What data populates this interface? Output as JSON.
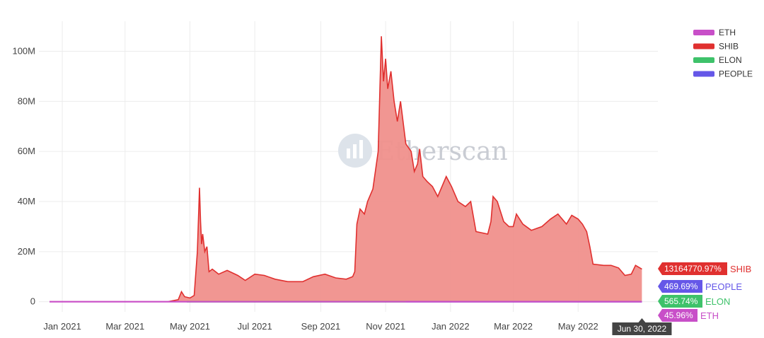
{
  "watermark": "Etherscan",
  "chart_data": {
    "type": "area",
    "title": "",
    "xlabel": "",
    "ylabel": "",
    "x_range": [
      "2020-12-10",
      "2022-07-15"
    ],
    "ylim": [
      -8000000,
      112000000
    ],
    "y_ticks": [
      {
        "value": 0,
        "label": "0"
      },
      {
        "value": 20000000,
        "label": "20M"
      },
      {
        "value": 40000000,
        "label": "40M"
      },
      {
        "value": 60000000,
        "label": "60M"
      },
      {
        "value": 80000000,
        "label": "80M"
      },
      {
        "value": 100000000,
        "label": "100M"
      }
    ],
    "x_ticks": [
      {
        "date": "2021-01-01",
        "label": "Jan 2021"
      },
      {
        "date": "2021-03-01",
        "label": "Mar 2021"
      },
      {
        "date": "2021-05-01",
        "label": "May 2021"
      },
      {
        "date": "2021-07-01",
        "label": "Jul 2021"
      },
      {
        "date": "2021-09-01",
        "label": "Sep 2021"
      },
      {
        "date": "2021-11-01",
        "label": "Nov 2021"
      },
      {
        "date": "2022-01-01",
        "label": "Jan 2022"
      },
      {
        "date": "2022-03-01",
        "label": "Mar 2022"
      },
      {
        "date": "2022-05-01",
        "label": "May 2022"
      }
    ],
    "grid": true,
    "legend_position": "top-right",
    "hover_date_label": "Jun 30, 2022",
    "legend": [
      {
        "name": "ETH",
        "color": "#c84fc8"
      },
      {
        "name": "SHIB",
        "color": "#e0302f"
      },
      {
        "name": "ELON",
        "color": "#3ec26a"
      },
      {
        "name": "PEOPLE",
        "color": "#6557e8"
      }
    ],
    "series": [
      {
        "name": "SHIB",
        "color": "#e0302f",
        "fill": "#f0908c",
        "badge": "13164770.97%",
        "points": [
          [
            "2020-12-20",
            0
          ],
          [
            "2021-04-10",
            0
          ],
          [
            "2021-04-20",
            800000
          ],
          [
            "2021-04-23",
            4000000
          ],
          [
            "2021-04-26",
            2000000
          ],
          [
            "2021-05-01",
            1500000
          ],
          [
            "2021-05-05",
            2500000
          ],
          [
            "2021-05-08",
            20000000
          ],
          [
            "2021-05-10",
            45500000
          ],
          [
            "2021-05-11",
            32000000
          ],
          [
            "2021-05-12",
            23000000
          ],
          [
            "2021-05-13",
            27000000
          ],
          [
            "2021-05-15",
            20000000
          ],
          [
            "2021-05-17",
            22000000
          ],
          [
            "2021-05-19",
            12000000
          ],
          [
            "2021-05-22",
            13000000
          ],
          [
            "2021-05-28",
            11000000
          ],
          [
            "2021-06-05",
            12500000
          ],
          [
            "2021-06-15",
            10500000
          ],
          [
            "2021-06-22",
            8500000
          ],
          [
            "2021-07-01",
            11000000
          ],
          [
            "2021-07-10",
            10500000
          ],
          [
            "2021-07-20",
            9000000
          ],
          [
            "2021-08-01",
            8000000
          ],
          [
            "2021-08-15",
            8000000
          ],
          [
            "2021-08-25",
            10000000
          ],
          [
            "2021-09-05",
            11000000
          ],
          [
            "2021-09-15",
            9500000
          ],
          [
            "2021-09-25",
            9000000
          ],
          [
            "2021-10-01",
            10000000
          ],
          [
            "2021-10-03",
            12000000
          ],
          [
            "2021-10-05",
            31000000
          ],
          [
            "2021-10-08",
            37000000
          ],
          [
            "2021-10-12",
            35000000
          ],
          [
            "2021-10-15",
            40000000
          ],
          [
            "2021-10-20",
            45000000
          ],
          [
            "2021-10-25",
            60000000
          ],
          [
            "2021-10-28",
            106000000
          ],
          [
            "2021-10-30",
            88000000
          ],
          [
            "2021-11-01",
            97000000
          ],
          [
            "2021-11-03",
            85000000
          ],
          [
            "2021-11-06",
            92000000
          ],
          [
            "2021-11-09",
            80000000
          ],
          [
            "2021-11-12",
            72000000
          ],
          [
            "2021-11-15",
            80000000
          ],
          [
            "2021-11-20",
            63000000
          ],
          [
            "2021-11-25",
            60000000
          ],
          [
            "2021-11-28",
            52000000
          ],
          [
            "2021-12-01",
            55000000
          ],
          [
            "2021-12-03",
            61000000
          ],
          [
            "2021-12-06",
            50000000
          ],
          [
            "2021-12-10",
            48000000
          ],
          [
            "2021-12-15",
            46000000
          ],
          [
            "2021-12-20",
            42000000
          ],
          [
            "2021-12-28",
            50000000
          ],
          [
            "2022-01-02",
            46000000
          ],
          [
            "2022-01-08",
            40000000
          ],
          [
            "2022-01-15",
            38000000
          ],
          [
            "2022-01-20",
            40000000
          ],
          [
            "2022-01-25",
            28000000
          ],
          [
            "2022-02-05",
            27000000
          ],
          [
            "2022-02-08",
            32000000
          ],
          [
            "2022-02-10",
            42000000
          ],
          [
            "2022-02-14",
            40000000
          ],
          [
            "2022-02-20",
            32000000
          ],
          [
            "2022-02-25",
            30000000
          ],
          [
            "2022-03-01",
            30000000
          ],
          [
            "2022-03-04",
            35000000
          ],
          [
            "2022-03-10",
            31000000
          ],
          [
            "2022-03-18",
            28500000
          ],
          [
            "2022-03-28",
            30000000
          ],
          [
            "2022-04-05",
            33000000
          ],
          [
            "2022-04-12",
            35000000
          ],
          [
            "2022-04-20",
            31000000
          ],
          [
            "2022-04-25",
            34500000
          ],
          [
            "2022-05-01",
            33000000
          ],
          [
            "2022-05-05",
            31000000
          ],
          [
            "2022-05-09",
            28000000
          ],
          [
            "2022-05-12",
            22000000
          ],
          [
            "2022-05-15",
            15000000
          ],
          [
            "2022-05-25",
            14500000
          ],
          [
            "2022-06-01",
            14500000
          ],
          [
            "2022-06-08",
            13500000
          ],
          [
            "2022-06-14",
            10500000
          ],
          [
            "2022-06-20",
            11000000
          ],
          [
            "2022-06-24",
            14500000
          ],
          [
            "2022-06-30",
            13000000
          ]
        ]
      },
      {
        "name": "ELON",
        "color": "#3ec26a",
        "badge": "565.74%",
        "points": [
          [
            "2021-04-28",
            0
          ],
          [
            "2021-11-20",
            0
          ]
        ]
      },
      {
        "name": "PEOPLE",
        "color": "#6557e8",
        "badge": "469.69%",
        "points": [
          [
            "2021-11-20",
            0
          ],
          [
            "2022-06-30",
            0
          ]
        ]
      },
      {
        "name": "ETH",
        "color": "#c84fc8",
        "badge": "45.96%",
        "points": [
          [
            "2020-12-20",
            0
          ],
          [
            "2022-06-30",
            0
          ]
        ]
      }
    ]
  }
}
